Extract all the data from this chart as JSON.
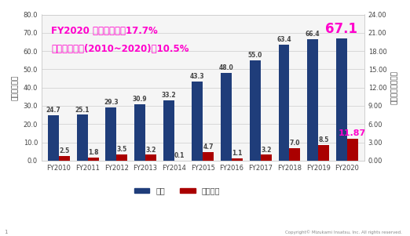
{
  "categories": [
    "FY2010",
    "FY2011",
    "FY2012",
    "FY2013",
    "FY2014",
    "FY2015",
    "FY2016",
    "FY2017",
    "FY2018",
    "FY2019",
    "FY2020"
  ],
  "sales": [
    24.7,
    25.1,
    29.3,
    30.9,
    33.2,
    43.3,
    48.0,
    55.0,
    63.4,
    66.4,
    67.1
  ],
  "profit": [
    2.5,
    1.8,
    3.5,
    3.2,
    0.1,
    4.7,
    1.1,
    3.2,
    7.0,
    8.5,
    11.87
  ],
  "sales_color": "#1f3d7a",
  "profit_color": "#aa0000",
  "bg_color": "#ffffff",
  "plot_bg_color": "#f5f5f5",
  "text_color": "#444444",
  "grid_color": "#cccccc",
  "annotation_color_magenta": "#ff00cc",
  "annotation1": "FY2020 経常利益率：17.7%",
  "annotation2": "年平均成長率(2010~2020)：10.5%",
  "annotation_label_last_sales": "67.1",
  "annotation_label_last_profit": "11.87",
  "ylabel_left": "売上（億円）",
  "ylabel_right": "経常利益（億円）",
  "ylim_left": [
    0,
    80
  ],
  "ylim_right": [
    0,
    24
  ],
  "yticks_left": [
    0.0,
    10.0,
    20.0,
    30.0,
    40.0,
    50.0,
    60.0,
    70.0,
    80.0
  ],
  "yticks_right": [
    0.0,
    3.0,
    6.0,
    9.0,
    12.0,
    15.0,
    18.0,
    21.0,
    24.0
  ],
  "legend_label_sales": "売上",
  "legend_label_profit": "経常利益",
  "copyright_text": "Copyright© Mizukami Insatsu, Inc. All rights reserved.",
  "bar_width": 0.38,
  "axis_fontsize": 6.5,
  "tick_fontsize": 6.0,
  "label_fontsize": 5.5,
  "annot_fontsize": 8.5
}
